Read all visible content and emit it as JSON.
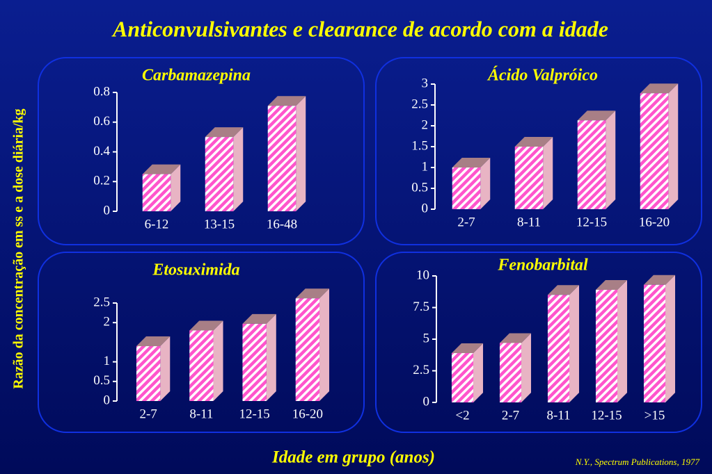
{
  "title": "Anticonvulsivantes e clearance de acordo com a idade",
  "y_axis_label": "Razão da concentração em ss e a dose diária/kg",
  "x_axis_label": "Idade em grupo (anos)",
  "source": "N.Y., Spectrum Publications, 1977",
  "chart_data": [
    {
      "type": "bar",
      "title": "Carbamazepina",
      "categories": [
        "6-12",
        "13-15",
        "16-48"
      ],
      "values": [
        0.25,
        0.5,
        0.71
      ],
      "color": "#ff55cc",
      "ylim": [
        0,
        0.8
      ],
      "yticks": [
        0,
        0.2,
        0.4,
        0.6,
        0.8
      ]
    },
    {
      "type": "bar",
      "title": "Ácido Valpróico",
      "categories": [
        "2-7",
        "8-11",
        "12-15",
        "16-20"
      ],
      "values": [
        1.0,
        1.5,
        2.13,
        2.78
      ],
      "color": "#ff55cc",
      "ylim": [
        0,
        3
      ],
      "yticks": [
        0,
        0.5,
        1,
        1.5,
        2,
        2.5,
        3
      ]
    },
    {
      "type": "bar",
      "title": "Etosuximida",
      "categories": [
        "2-7",
        "8-11",
        "12-15",
        "16-20"
      ],
      "values": [
        1.4,
        1.8,
        1.97,
        2.62
      ],
      "color": "#ff55cc",
      "ylim": [
        0,
        2.5
      ],
      "yticks": [
        0,
        0.5,
        1,
        2,
        2.5
      ]
    },
    {
      "type": "bar",
      "title": "Fenobarbital",
      "categories": [
        "<2",
        "2-7",
        "8-11",
        "12-15",
        ">15"
      ],
      "values": [
        3.9,
        4.7,
        8.5,
        8.9,
        9.3
      ],
      "color": "#ff55cc",
      "ylim": [
        0,
        10
      ],
      "yticks": [
        0,
        2.5,
        5,
        7.5,
        10
      ]
    }
  ]
}
